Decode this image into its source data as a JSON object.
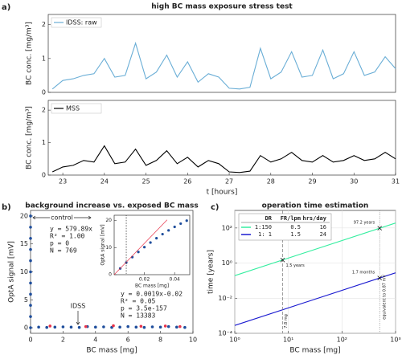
{
  "chart_data": [
    {
      "type": "line",
      "panel_label": "a)",
      "title": "high BC mass exposure stress test",
      "ylabel": "BC conc. [mg/m³]",
      "xlim": [
        22.65,
        31
      ],
      "ylim": [
        0,
        2.3
      ],
      "yticks": [
        0,
        1,
        2
      ],
      "legend": "upper left",
      "x": [
        22.75,
        23,
        23.25,
        23.5,
        23.75,
        24,
        24.25,
        24.5,
        24.75,
        25,
        25.25,
        25.5,
        25.75,
        26,
        26.25,
        26.5,
        26.75,
        27,
        27.25,
        27.5,
        27.75,
        28,
        28.25,
        28.5,
        28.75,
        29,
        29.25,
        29.5,
        29.75,
        30,
        30.25,
        30.5,
        30.75,
        31
      ],
      "series": [
        {
          "name": "IDSS: raw",
          "color": "#6aaed6",
          "values": [
            0.1,
            0.35,
            0.4,
            0.5,
            0.55,
            1.0,
            0.45,
            0.5,
            1.45,
            0.4,
            0.6,
            1.1,
            0.45,
            0.9,
            0.3,
            0.55,
            0.45,
            0.12,
            0.1,
            0.15,
            1.3,
            0.4,
            0.6,
            1.2,
            0.45,
            0.5,
            1.25,
            0.4,
            0.55,
            1.2,
            0.5,
            0.6,
            1.05,
            0.7
          ]
        }
      ]
    },
    {
      "type": "line",
      "xlabel": "t [hours]",
      "ylabel": "BC conc. [mg/m³]",
      "xlim": [
        22.65,
        31
      ],
      "ylim": [
        0,
        2.3
      ],
      "yticks": [
        0,
        1,
        2
      ],
      "xticks": [
        23,
        24,
        25,
        26,
        27,
        28,
        29,
        30,
        31
      ],
      "legend": "upper left",
      "x": [
        22.75,
        23,
        23.25,
        23.5,
        23.75,
        24,
        24.25,
        24.5,
        24.75,
        25,
        25.25,
        25.5,
        25.75,
        26,
        26.25,
        26.5,
        26.75,
        27,
        27.25,
        27.5,
        27.75,
        28,
        28.25,
        28.5,
        28.75,
        29,
        29.25,
        29.5,
        29.75,
        30,
        30.25,
        30.5,
        30.75,
        31
      ],
      "series": [
        {
          "name": "MSS",
          "color": "#000000",
          "values": [
            0.1,
            0.25,
            0.3,
            0.45,
            0.4,
            0.9,
            0.35,
            0.4,
            0.8,
            0.3,
            0.45,
            0.75,
            0.35,
            0.55,
            0.25,
            0.45,
            0.35,
            0.1,
            0.08,
            0.12,
            0.6,
            0.4,
            0.5,
            0.7,
            0.45,
            0.4,
            0.6,
            0.4,
            0.45,
            0.6,
            0.45,
            0.5,
            0.7,
            0.5
          ]
        }
      ]
    },
    {
      "type": "scatter",
      "panel_label": "b)",
      "title": "background increase vs. exposed BC mass",
      "xlabel": "BC mass [mg]",
      "ylabel": "OptA signal [mV]",
      "xlim": [
        0,
        10
      ],
      "ylim": [
        -1,
        21
      ],
      "xticks": [
        0,
        2,
        4,
        6,
        8,
        10
      ],
      "yticks": [
        0,
        5,
        10,
        15,
        20
      ],
      "control_label": "control",
      "idss_label": "IDSS",
      "fit_stats": [
        "y  = 579.89x",
        "R² = 1.00",
        "p  = 0",
        "N  = 769"
      ],
      "fit_stats_2": [
        "y  = 0.0019x-0.02",
        "R² = 0.05",
        "p  = 3.5e-157",
        "N  = 13383"
      ],
      "series": [
        {
          "color": "#1f4e9c",
          "x": [
            0,
            0,
            0,
            0,
            0,
            0,
            0,
            0,
            0,
            0,
            0,
            0.5,
            1,
            1.5,
            2,
            2.5,
            3,
            3.5,
            4,
            4.5,
            5,
            5.5,
            6,
            6.5,
            7,
            7.5,
            8,
            8.5,
            9,
            9.5
          ],
          "values": [
            0,
            2,
            4,
            6,
            8,
            10,
            12,
            14,
            16,
            18,
            20,
            0.1,
            0.05,
            0.1,
            0.15,
            0.1,
            0.05,
            0.2,
            0.1,
            0.15,
            0.05,
            0.1,
            0.2,
            0.1,
            0.05,
            0.15,
            0.1,
            0.2,
            0.1,
            0.05
          ]
        },
        {
          "color": "#e8334a",
          "x": [
            1.2,
            3.4,
            5.1,
            6.8,
            8.3,
            9.2
          ],
          "values": [
            0.3,
            0.2,
            0.35,
            0.25,
            0.3,
            0.2
          ]
        }
      ]
    },
    {
      "type": "scatter",
      "xlabel": "BC mass [mg]",
      "ylabel": "OptA signal [mV]",
      "xlim": [
        0,
        0.05
      ],
      "ylim": [
        0,
        22
      ],
      "xticks": [
        0.02,
        0.04
      ],
      "yticks": [
        0,
        10,
        20
      ],
      "vline": 0.008,
      "fit": {
        "color": "#e8334a",
        "x": [
          0,
          0.035
        ],
        "values": [
          0,
          20.3
        ]
      },
      "series": [
        {
          "color": "#1f4e9c",
          "x": [
            0.004,
            0.008,
            0.012,
            0.016,
            0.02,
            0.024,
            0.028,
            0.032,
            0.036,
            0.04,
            0.044,
            0.048
          ],
          "values": [
            2.3,
            4.5,
            6.5,
            8.4,
            10.2,
            11.9,
            13.5,
            15.0,
            16.4,
            17.7,
            18.9,
            20.0
          ]
        }
      ]
    },
    {
      "type": "line",
      "panel_label": "c)",
      "title": "operation time estimation",
      "xlabel": "BC mass [mg]",
      "ylabel": "time [years]",
      "xlog": true,
      "ylog": true,
      "grid": true,
      "xlim": [
        1,
        1000
      ],
      "ylim": [
        0.0001,
        1000
      ],
      "xticks": [
        {
          "value": 1,
          "label": "10⁰"
        },
        {
          "value": 10,
          "label": "10¹"
        },
        {
          "value": 100,
          "label": "10²"
        },
        {
          "value": 1000,
          "label": "10³"
        }
      ],
      "yticks": [
        {
          "value": 0.0001,
          "label": "10⁻⁴"
        },
        {
          "value": 0.01,
          "label": "10⁻²"
        },
        {
          "value": 1,
          "label": "10⁰"
        },
        {
          "value": 100,
          "label": "10²"
        }
      ],
      "series": [
        {
          "color": "#35eea0",
          "x": [
            1,
            1000
          ],
          "values": [
            0.192,
            192
          ]
        },
        {
          "color": "#1a1ad0",
          "x": [
            1,
            1000
          ],
          "values": [
            0.00028,
            0.28
          ]
        }
      ],
      "markers": [
        {
          "x": 7.8,
          "y": 1.5,
          "label": "1.5 years"
        },
        {
          "x": 505,
          "y": 97.2,
          "label": "97.2 years"
        },
        {
          "x": 505,
          "y": 0.1417,
          "label": "1.7 months"
        }
      ],
      "vlines": [
        {
          "x": 7.8,
          "label": "7.8 mg"
        },
        {
          "x": 505,
          "label": "equivalent to 0.87 mV"
        }
      ],
      "table": {
        "columns": [
          "DR",
          "FR/lpm",
          "hrs/day"
        ],
        "rows": [
          [
            "1:150",
            "0.5",
            "16"
          ],
          [
            "1: 1",
            "1.5",
            "24"
          ]
        ]
      }
    }
  ]
}
